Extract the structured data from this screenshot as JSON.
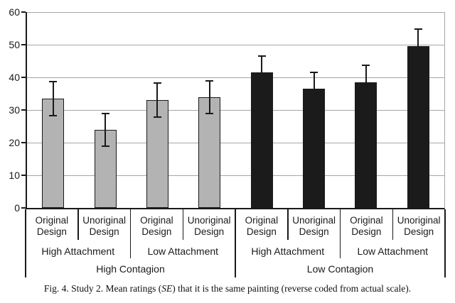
{
  "figure_caption": {
    "prefix": "Fig. 4.  Study 2. Mean ratings (",
    "italic": "SE",
    "suffix": ") that it is the same painting (reverse coded from actual scale)."
  },
  "chart_data": {
    "type": "bar",
    "title": "",
    "xlabel": "",
    "ylabel": "",
    "ylim": [
      0,
      60
    ],
    "yticks": [
      0,
      10,
      20,
      30,
      40,
      50,
      60
    ],
    "grid": true,
    "legend": "none",
    "error_bars": "standard error",
    "bar_colors": {
      "High Contagion": "#b3b3b3",
      "Low Contagion": "#1b1b1b"
    },
    "bars": [
      {
        "contagion": "High Contagion",
        "attachment": "High Attachment",
        "design": "Original Design",
        "mean": 33.5,
        "se": 5.5
      },
      {
        "contagion": "High Contagion",
        "attachment": "High Attachment",
        "design": "Unoriginal Design",
        "mean": 24.0,
        "se": 5.2
      },
      {
        "contagion": "High Contagion",
        "attachment": "Low Attachment",
        "design": "Original Design",
        "mean": 33.0,
        "se": 5.4
      },
      {
        "contagion": "High Contagion",
        "attachment": "Low Attachment",
        "design": "Unoriginal Design",
        "mean": 34.0,
        "se": 5.2
      },
      {
        "contagion": "Low Contagion",
        "attachment": "High Attachment",
        "design": "Original Design",
        "mean": 41.5,
        "se": 5.3
      },
      {
        "contagion": "Low Contagion",
        "attachment": "High Attachment",
        "design": "Unoriginal Design",
        "mean": 36.5,
        "se": 5.3
      },
      {
        "contagion": "Low Contagion",
        "attachment": "Low Attachment",
        "design": "Original Design",
        "mean": 38.5,
        "se": 5.5
      },
      {
        "contagion": "Low Contagion",
        "attachment": "Low Attachment",
        "design": "Unoriginal Design",
        "mean": 49.5,
        "se": 5.5
      }
    ],
    "x_axis_rows": {
      "design_labels": [
        "Original Design",
        "Unoriginal Design",
        "Original Design",
        "Unoriginal Design",
        "Original Design",
        "Unoriginal Design",
        "Original Design",
        "Unoriginal Design"
      ],
      "attachment_labels": [
        "High Attachment",
        "Low Attachment",
        "High Attachment",
        "Low Attachment"
      ],
      "contagion_labels": [
        "High Contagion",
        "Low Contagion"
      ]
    }
  }
}
